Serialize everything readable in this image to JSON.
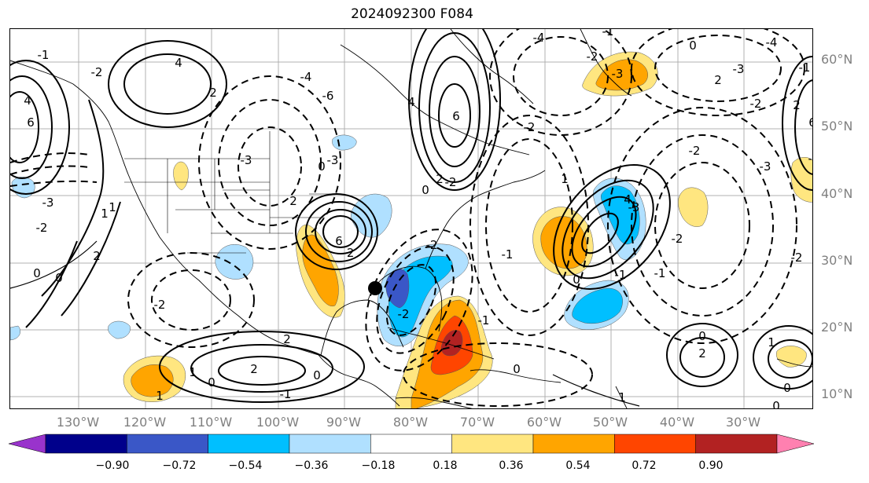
{
  "title": "2024092300 F084",
  "map": {
    "lat_labels": [
      "60°N",
      "50°N",
      "40°N",
      "30°N",
      "20°N",
      "10°N"
    ],
    "lon_labels": [
      "130°W",
      "120°W",
      "110°W",
      "100°W",
      "90°W",
      "80°W",
      "70°W",
      "60°W",
      "50°W",
      "40°W",
      "30°W"
    ],
    "contour_labels": [
      "-1",
      "-3",
      "-4",
      "-6",
      "-3",
      "-4",
      "-3",
      "-3",
      "-2",
      "-1",
      "-2",
      "-1",
      "-2",
      "-2",
      "-1",
      "-2",
      "-2",
      "-4",
      "-3",
      "-2",
      "-3",
      "-2",
      "-2",
      "-2",
      "-2",
      "-1",
      "0",
      "0",
      "1",
      "2",
      "2",
      "4",
      "6",
      "6",
      "6",
      "1",
      "2",
      "4",
      "6",
      "4",
      "2",
      "1",
      "2",
      "1",
      "0",
      "0",
      "1",
      "2",
      "0",
      "0",
      "1",
      "2",
      "1",
      "0",
      "-1",
      "-4",
      "-1",
      "-2",
      "-3",
      "-2",
      "-1",
      "0",
      "0",
      "2",
      "4",
      "2",
      "0",
      "0",
      "0"
    ]
  },
  "colorbar": {
    "ticks": [
      "−0.90",
      "−0.72",
      "−0.54",
      "−0.36",
      "−0.18",
      "0.18",
      "0.36",
      "0.54",
      "0.72",
      "0.90"
    ],
    "colors": [
      "#9933cc",
      "#00008b",
      "#3a57c7",
      "#00bfff",
      "#b0e0ff",
      "#ffffff",
      "#ffe680",
      "#ffa500",
      "#ff4500",
      "#b22222",
      "#ff80b0"
    ]
  }
}
